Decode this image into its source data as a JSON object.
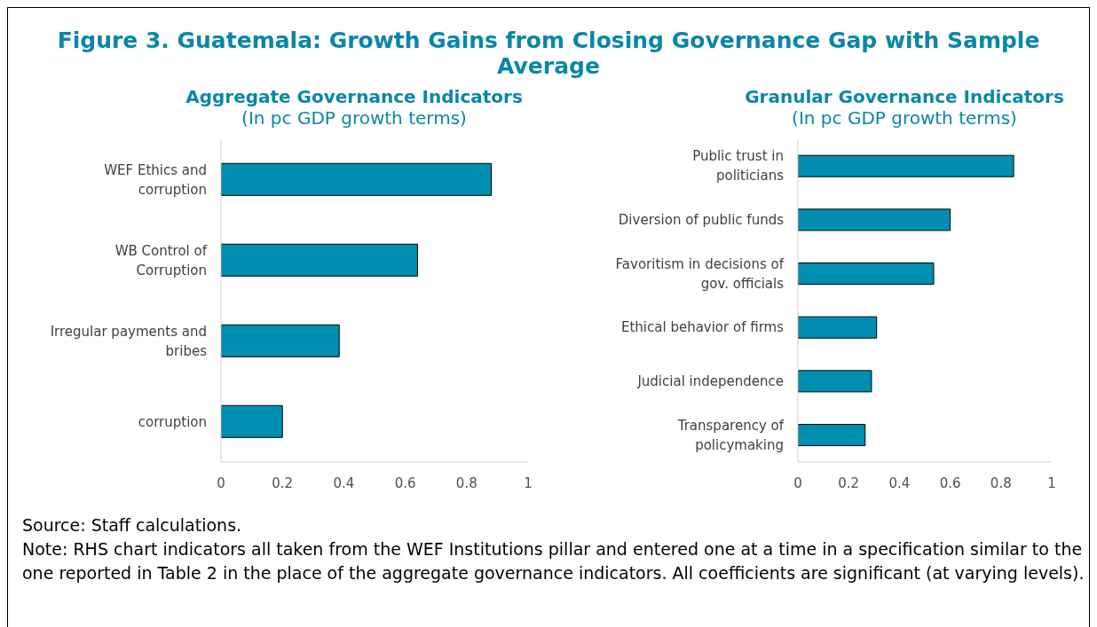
{
  "chart_data": [
    {
      "type": "other",
      "title": "Figure 3. Guatemala: Growth Gains from Closing Governance Gap with Sample Average",
      "annotations": [
        "Source: Staff calculations.",
        "Note: RHS chart indicators all taken from the WEF Institutions pillar and entered one at a time in a specification similar to the one reported in Table 2 in the place of the aggregate governance indicators. All coefficients are significant (at varying levels)."
      ]
    },
    {
      "type": "bar",
      "orientation": "horizontal",
      "title": "Aggregate Governance Indicators",
      "subtitle": "(In pc GDP growth terms)",
      "categories": [
        "WEF Ethics and corruption",
        "WB Control of Corruption",
        "Irregular payments and bribes",
        "corruption"
      ],
      "values": [
        0.88,
        0.64,
        0.385,
        0.2
      ],
      "color": "#008fb0",
      "xlim": [
        0,
        1
      ],
      "xticks": [
        0,
        0.2,
        0.4,
        0.6,
        0.8,
        1
      ]
    },
    {
      "type": "bar",
      "orientation": "horizontal",
      "title": "Granular Governance Indicators",
      "subtitle": "(In pc GDP growth terms)",
      "categories": [
        "Public trust in politicians",
        "Diversion of public funds",
        "Favoritism in decisions of gov. officials",
        "Ethical behavior of firms",
        "Judicial independence",
        "Transparency of policymaking"
      ],
      "values": [
        0.85,
        0.6,
        0.535,
        0.31,
        0.29,
        0.265
      ],
      "color": "#008fb0",
      "xlim": [
        0,
        1
      ],
      "xticks": [
        0,
        0.2,
        0.4,
        0.6,
        0.8,
        1
      ]
    }
  ]
}
